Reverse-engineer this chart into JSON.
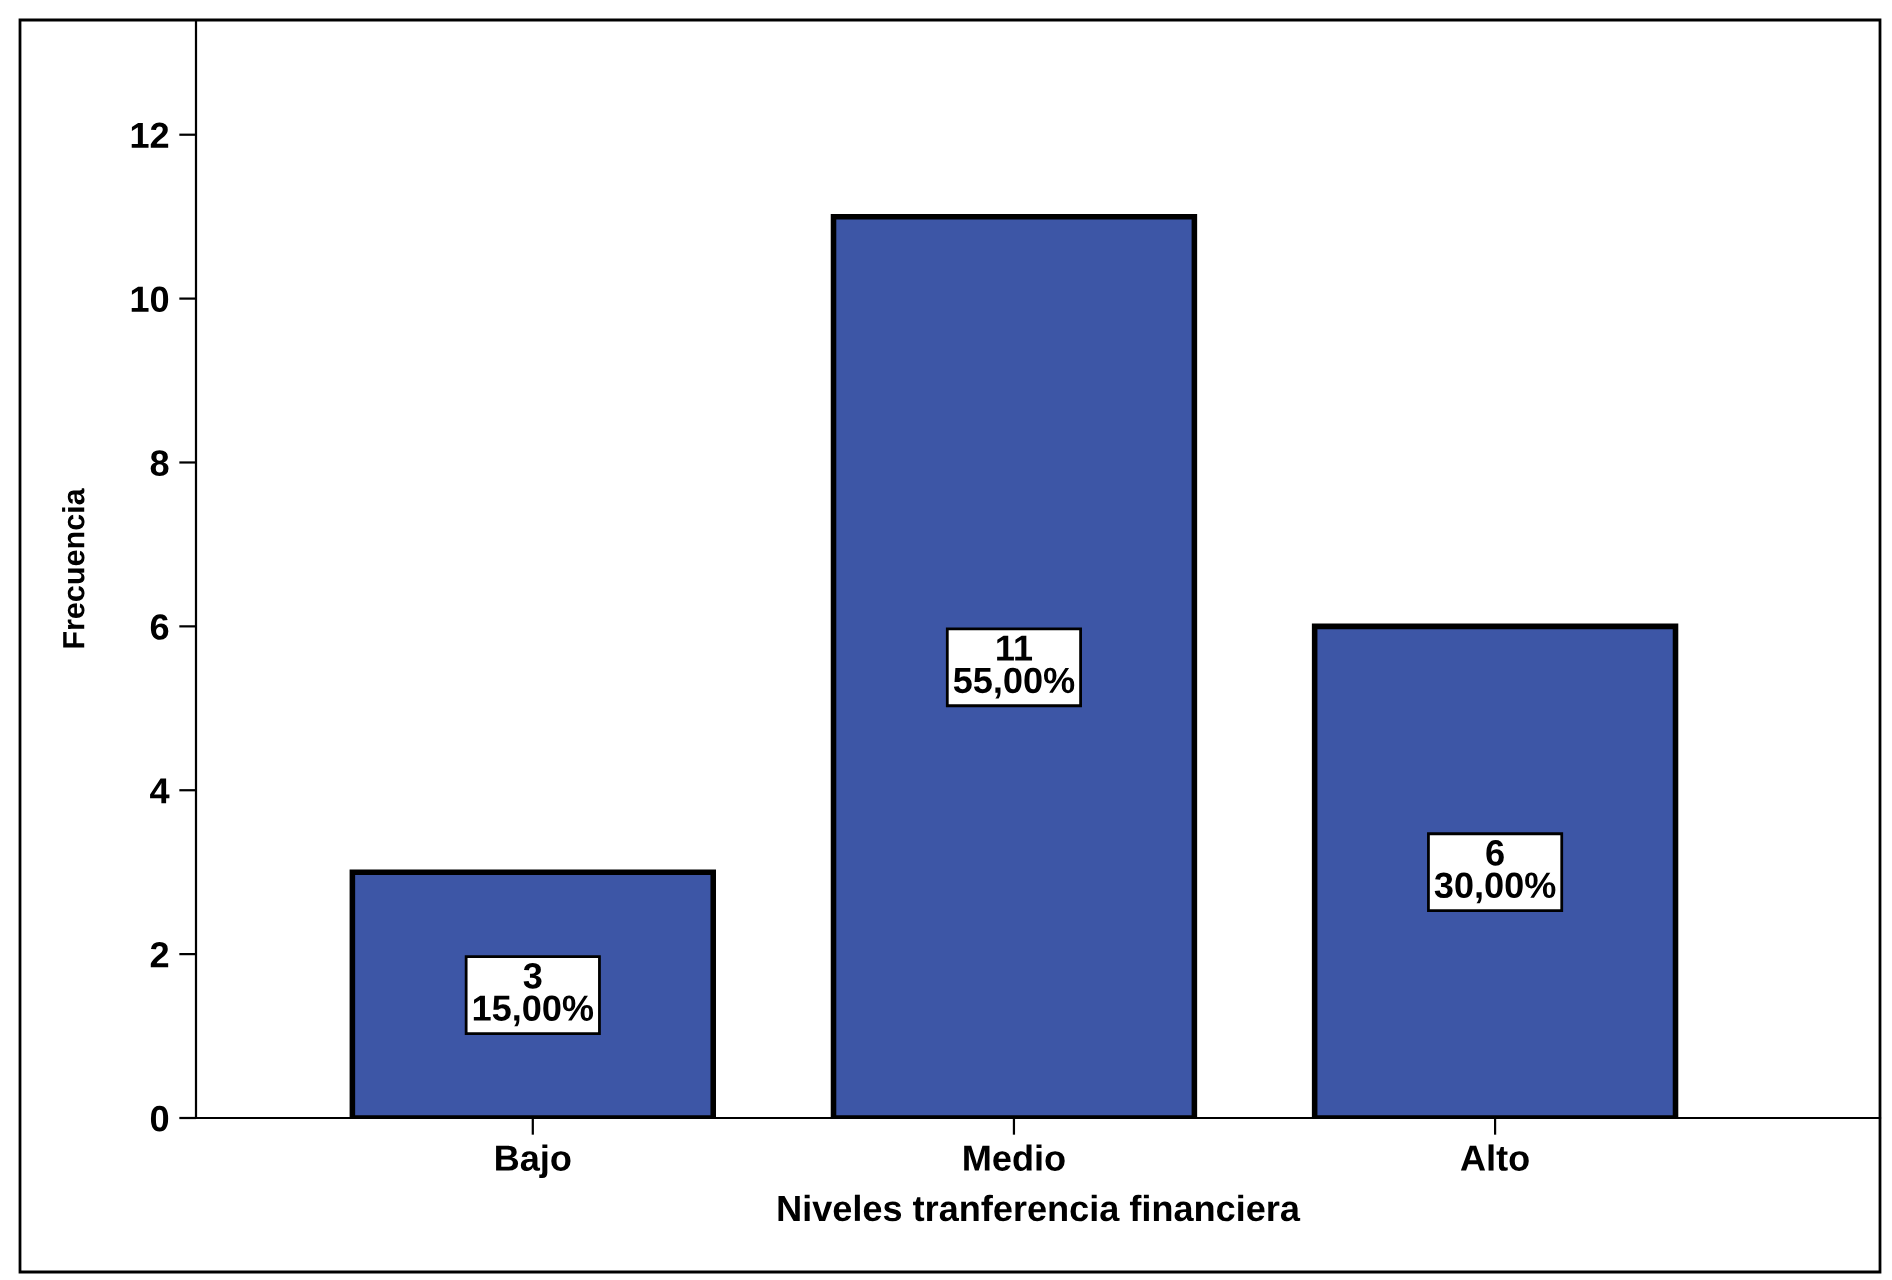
{
  "chart_data": {
    "type": "bar",
    "xlabel": "Niveles tranferencia financiera",
    "ylabel": "Frecuencia",
    "categories": [
      "Bajo",
      "Medio",
      "Alto"
    ],
    "values": [
      3,
      11,
      6
    ],
    "value_labels": [
      "3\n15,00%",
      "11\n55,00%",
      "6\n30,00%"
    ],
    "color": "#3d56a6",
    "ylim": [
      0,
      13.4
    ],
    "yticks": [
      0,
      2,
      4,
      6,
      8,
      10,
      12
    ],
    "grid": false
  }
}
